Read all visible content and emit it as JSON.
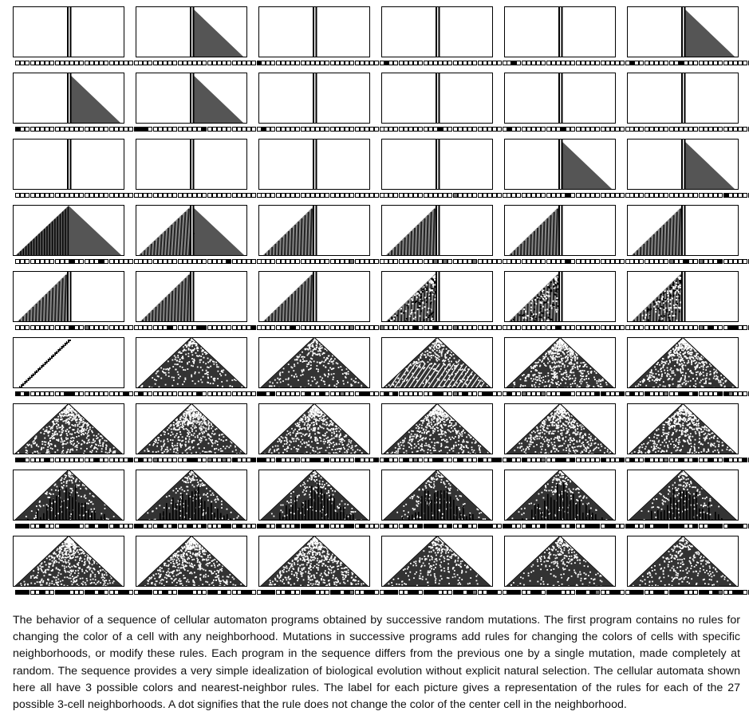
{
  "caption": "The behavior of a sequence of cellular automaton programs obtained by successive random mutations. The first program contains no rules for changing the color of a cell with any neighborhood. Mutations in successive programs add rules for changing the colors of cells with specific neighborhoods, or modify these rules. Each program in the sequence differs from the previous one by a single mutation, made completely at random. The sequence provides a very simple idealization of biological evolution without explicit natural selection. The cellular automata shown here all have 3 possible colors and nearest-neighbor rules. The label for each picture gives a representation of the rules for each of the 27 possible 3-cell neighborhoods. A dot signifies that the rule does not change the color of the center cell in the neighborhood.",
  "panels": [
    {
      "pattern": "stripe",
      "rules": "...........................",
      "shift": 0
    },
    {
      "pattern": "wedge",
      "rules": "........................k..",
      "shift": 0
    },
    {
      "pattern": "stripe",
      "rules": "...........................",
      "shift": 0
    },
    {
      "pattern": "stripe",
      "rules": "k..........................",
      "shift": 0
    },
    {
      "pattern": "stripe",
      "rules": ".k.........................",
      "shift": 0
    },
    {
      "pattern": "wedge",
      "rules": "k.........k...............k",
      "shift": 0
    },
    {
      "pattern": "wedge",
      "rules": "k.......................k..",
      "shift": 0
    },
    {
      "pattern": "wedge",
      "rules": "kk...........k.............",
      "shift": 0
    },
    {
      "pattern": "stripe",
      "rules": "k..........................",
      "shift": 0
    },
    {
      "pattern": "stripe",
      "rules": "...........k...............",
      "shift": 0
    },
    {
      "pattern": "stripe",
      "rules": "k..........k...............",
      "shift": 0
    },
    {
      "pattern": "stripe",
      "rules": "...........................",
      "shift": 0
    },
    {
      "pattern": "stripe",
      "rules": "...........................",
      "shift": 0
    },
    {
      "pattern": "stripe",
      "rules": "...........................",
      "shift": 0
    },
    {
      "pattern": "stripe",
      "rules": "...........................",
      "shift": 0
    },
    {
      "pattern": "stripe",
      "rules": "..............g............",
      "shift": 0
    },
    {
      "pattern": "wedge",
      "rules": "............k..............",
      "shift": 0
    },
    {
      "pattern": "wedge",
      "rules": "...................k.......",
      "shift": 0
    },
    {
      "pattern": "pyr-lines",
      "rules": "...........k.....k.........",
      "shift": 0
    },
    {
      "pattern": "pyr-hatch",
      "rules": "..................k.......k",
      "shift": 0
    },
    {
      "pattern": "left-hatch",
      "rules": "..................g........",
      "shift": 0
    },
    {
      "pattern": "left-hatch",
      "rules": "..........g.g.....g........",
      "shift": 0
    },
    {
      "pattern": "left-hatch",
      "rules": "............k.............k",
      "shift": 0
    },
    {
      "pattern": "left-hatch",
      "rules": "........g..k..g...k.......k",
      "shift": 0
    },
    {
      "pattern": "left-hatch",
      "rules": "...........k..g...........k",
      "shift": 0
    },
    {
      "pattern": "left-hatch",
      "rules": "......k.....kk.........k..k",
      "shift": 0
    },
    {
      "pattern": "left-hatch",
      "rules": "......k...........g.....g..",
      "shift": 0
    },
    {
      "pattern": "left-noise",
      "rules": "......k...k...g...........k",
      "shift": 0
    },
    {
      "pattern": "left-noise",
      "rules": "..........k...............k",
      "shift": 0
    },
    {
      "pattern": "left-noise",
      "rules": "..............g.k...kk....k",
      "shift": 0
    },
    {
      "pattern": "diag",
      "rules": "k.k.......kk..........k....",
      "shift": 0
    },
    {
      "pattern": "pyr-dense",
      "rules": "k...........k...........k..",
      "shift": 0
    },
    {
      "pattern": "pyr-dense",
      "rules": "k.k......k..k...g...kk.....",
      "shift": 0
    },
    {
      "pattern": "pyr-stripe",
      "rules": "k.k.......kk..g.k...kk....k",
      "shift": 0
    },
    {
      "pattern": "pyr-noise",
      "rules": "k..g...g...kk.....kk...k..k",
      "shift": 0
    },
    {
      "pattern": "pyr-noise",
      "rules": "k..k...g..kk.k....kkg......",
      "shift": 0
    },
    {
      "pattern": "pyr-noise",
      "rules": "kk....k.........k......k...",
      "shift": 0
    },
    {
      "pattern": "pyr-noise",
      "rules": "k..g......kk..g..g.k...kk.k",
      "shift": 0
    },
    {
      "pattern": "pyr-noise",
      "rules": "k..k...g..kk.k.....k...k..k",
      "shift": 0
    },
    {
      "pattern": "pyr-noise",
      "rules": "k...k.g...kk...k...k..kk..k",
      "shift": 0
    },
    {
      "pattern": "pyr-noise",
      "rules": "k..k...g..kk.k.....k...k..k",
      "shift": 0
    },
    {
      "pattern": "pyr-noise",
      "rules": "k..k...g..k..k..k..k...k..k",
      "shift": 0
    },
    {
      "pattern": "pyr-bars",
      "rules": "kkk..k...kkkk..k.kk.k...kkk",
      "shift": 0
    },
    {
      "pattern": "pyr-bars",
      "rules": "k...k..k..k..k...kk.k...k..",
      "shift": 0
    },
    {
      "pattern": "pyr-bars",
      "rules": "k..k...kkkk..k...kk.k....kk",
      "shift": 0
    },
    {
      "pattern": "pyr-bars",
      "rules": "k...k..kkkk..k..k..kkk..kkk",
      "shift": 0
    },
    {
      "pattern": "pyr-bars",
      "rules": "k...k..kkkk..k..kkk.kk..kkk",
      "shift": 0
    },
    {
      "pattern": "pyr-bars",
      "rules": "k..k.kkkkkk..k..kkk.kkk.kkk",
      "shift": 0
    },
    {
      "pattern": "pyr-noise",
      "rules": "kkk..k..kkk...kk.k...kk..kk",
      "shift": 0
    },
    {
      "pattern": "pyr-noise",
      "rules": "kkk..k..kkk...kk.k...kk..kk",
      "shift": 0
    },
    {
      "pattern": "pyr-noise",
      "rules": "kkk..k..kkk...kk.kg..kk..kk",
      "shift": 0
    },
    {
      "pattern": "pyr-dense",
      "rules": "kkk..kk.kkk...kk.kg..kk..kk",
      "shift": 0
    },
    {
      "pattern": "pyr-dense",
      "rules": "kkk..kk.kkk...kk.kg..kk..kk",
      "shift": 0
    },
    {
      "pattern": "pyr-dense",
      "rules": "kkk..kk.kkk...kk.kg..kk..kk",
      "shift": 0
    }
  ]
}
